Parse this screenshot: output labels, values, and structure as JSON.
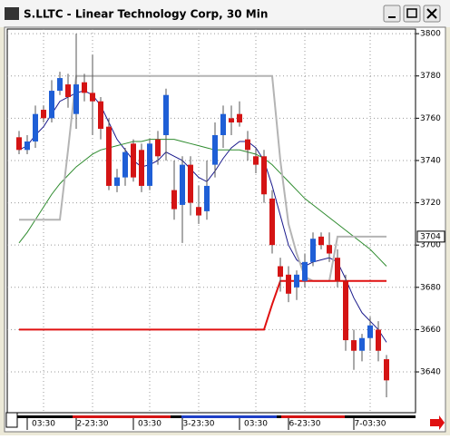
{
  "window_title": "S.LLTC - Linear Technology Corp, 30 Min",
  "chart_data": {
    "type": "candlestick",
    "open": [
      3751,
      3745,
      3749,
      3764,
      3760,
      3773,
      3776,
      3762,
      3777,
      3772,
      3768,
      3756,
      3728,
      3732,
      3748,
      3745,
      3728,
      3750,
      3752,
      3726,
      3719,
      3738,
      3718,
      3716,
      3738,
      3752,
      3760,
      3762,
      3750,
      3742,
      3742,
      3722,
      3690,
      3686,
      3680,
      3683,
      3692,
      3704,
      3700,
      3694,
      3683,
      3655,
      3650,
      3656,
      3660,
      3646
    ],
    "high": [
      3754,
      3752,
      3766,
      3766,
      3778,
      3782,
      3781,
      3800,
      3781,
      3790,
      3770,
      3760,
      3736,
      3746,
      3750,
      3748,
      3750,
      3754,
      3774,
      3740,
      3742,
      3742,
      3728,
      3740,
      3758,
      3766,
      3766,
      3768,
      3754,
      3746,
      3745,
      3726,
      3694,
      3690,
      3688,
      3696,
      3706,
      3706,
      3706,
      3698,
      3686,
      3660,
      3658,
      3666,
      3664,
      3648
    ],
    "low": [
      3743,
      3743,
      3746,
      3758,
      3758,
      3771,
      3765,
      3755,
      3768,
      3752,
      3750,
      3726,
      3725,
      3728,
      3730,
      3725,
      3726,
      3738,
      3740,
      3712,
      3701,
      3714,
      3710,
      3712,
      3732,
      3746,
      3752,
      3756,
      3740,
      3734,
      3720,
      3696,
      3678,
      3673,
      3674,
      3680,
      3690,
      3698,
      3692,
      3680,
      3650,
      3641,
      3645,
      3650,
      3645,
      3628
    ],
    "close": [
      3745,
      3749,
      3762,
      3760,
      3773,
      3779,
      3770,
      3776,
      3772,
      3768,
      3755,
      3728,
      3732,
      3744,
      3732,
      3728,
      3748,
      3742,
      3771,
      3717,
      3738,
      3720,
      3714,
      3728,
      3752,
      3762,
      3758,
      3758,
      3745,
      3738,
      3724,
      3700,
      3685,
      3677,
      3686,
      3692,
      3703,
      3700,
      3696,
      3683,
      3655,
      3650,
      3656,
      3662,
      3650,
      3636
    ],
    "up_color": "#1f5fd6",
    "down_color": "#d41414",
    "lines": [
      {
        "color": "#1a1a8c",
        "values": [
          3745,
          3747,
          3752,
          3756,
          3762,
          3768,
          3770,
          3772,
          3773,
          3771,
          3766,
          3758,
          3750,
          3745,
          3740,
          3737,
          3738,
          3740,
          3744,
          3742,
          3740,
          3736,
          3732,
          3730,
          3735,
          3741,
          3746,
          3749,
          3749,
          3746,
          3740,
          3728,
          3714,
          3700,
          3693,
          3690,
          3692,
          3693,
          3694,
          3692,
          3684,
          3675,
          3668,
          3664,
          3660,
          3654
        ]
      },
      {
        "color": "#2e8b2e",
        "values": [
          3701,
          3706,
          3712,
          3718,
          3724,
          3729,
          3733,
          3737,
          3740,
          3743,
          3745,
          3746,
          3747,
          3748,
          3749,
          3749,
          3750,
          3750,
          3750,
          3750,
          3749,
          3748,
          3747,
          3746,
          3745,
          3745,
          3745,
          3745,
          3744,
          3743,
          3741,
          3738,
          3734,
          3730,
          3726,
          3722,
          3719,
          3716,
          3713,
          3710,
          3707,
          3704,
          3701,
          3698,
          3694,
          3690
        ]
      },
      {
        "color": "#b4b4b4",
        "values": [
          3712,
          3712,
          3712,
          3712,
          3712,
          3712,
          3745,
          3780,
          3780,
          3780,
          3780,
          3780,
          3780,
          3780,
          3780,
          3780,
          3780,
          3780,
          3780,
          3780,
          3780,
          3780,
          3780,
          3780,
          3780,
          3780,
          3780,
          3780,
          3780,
          3780,
          3780,
          3780,
          3740,
          3710,
          3696,
          3685,
          3683,
          3683,
          3683,
          3704,
          3704,
          3704,
          3704,
          3704,
          3704,
          3704
        ]
      },
      {
        "color": "#e01010",
        "values": [
          3660,
          3660,
          3660,
          3660,
          3660,
          3660,
          3660,
          3660,
          3660,
          3660,
          3660,
          3660,
          3660,
          3660,
          3660,
          3660,
          3660,
          3660,
          3660,
          3660,
          3660,
          3660,
          3660,
          3660,
          3660,
          3660,
          3660,
          3660,
          3660,
          3660,
          3660,
          3672,
          3683,
          3683,
          3683,
          3683,
          3683,
          3683,
          3683,
          3683,
          3683,
          3683,
          3683,
          3683,
          3683,
          3683
        ]
      }
    ],
    "ylim": [
      3620.7,
      3802.2
    ],
    "yticks": [
      3640,
      3660,
      3680,
      3700,
      3720,
      3740,
      3760,
      3780,
      3800
    ],
    "xticks": [
      {
        "value": 3,
        "label": "03:30"
      },
      {
        "value": 9,
        "label": "2-23:30"
      },
      {
        "value": 16,
        "label": "03:30"
      },
      {
        "value": 22,
        "label": "3-23:30"
      },
      {
        "value": 29,
        "label": "03:30"
      },
      {
        "value": 35,
        "label": "6-23:30"
      },
      {
        "value": 43,
        "label": "7-03:30"
      }
    ],
    "last_price": 3704,
    "grid": true
  }
}
